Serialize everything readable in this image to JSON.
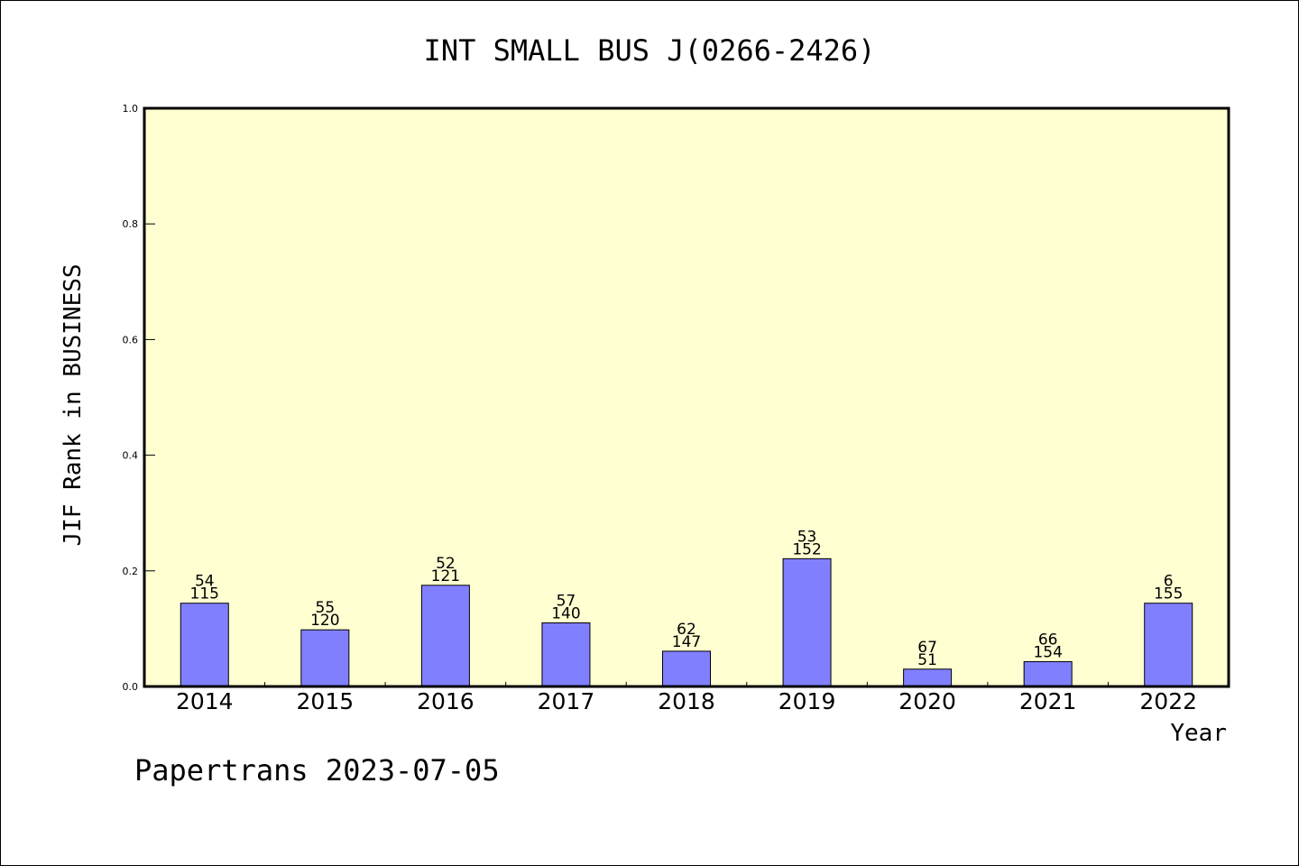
{
  "chart_data": {
    "type": "bar",
    "title": "INT SMALL BUS J(0266-2426)",
    "xlabel": "Year",
    "ylabel": "JIF Rank in BUSINESS",
    "ylim": [
      0,
      1.0
    ],
    "yticks": [
      "0.0",
      "0.2",
      "0.4",
      "0.6",
      "0.8",
      "1.0"
    ],
    "categories": [
      "2014",
      "2015",
      "2016",
      "2017",
      "2018",
      "2019",
      "2020",
      "2021",
      "2022"
    ],
    "values": [
      0.144,
      0.098,
      0.175,
      0.11,
      0.061,
      0.221,
      0.03,
      0.043,
      0.144
    ],
    "labels_top": [
      "54",
      "55",
      "52",
      "57",
      "62",
      "53",
      "67",
      "66",
      "6"
    ],
    "labels_bottom": [
      "115",
      "120",
      "121",
      "140",
      "147",
      "152",
      "51",
      "154",
      "155"
    ],
    "plot_background": "#FFFFD2",
    "bar_color": "#8080FF",
    "grid": false
  },
  "footer": "Papertrans 2023-07-05"
}
